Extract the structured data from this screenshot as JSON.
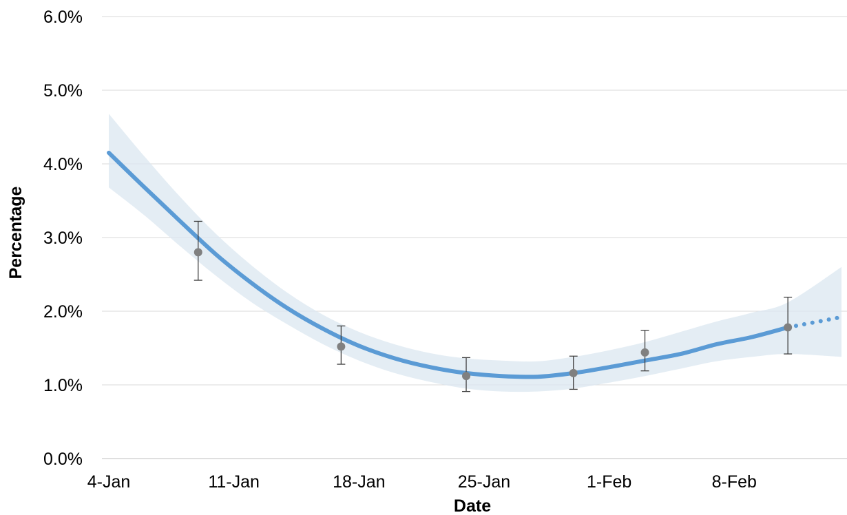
{
  "chart_data": {
    "type": "line",
    "title": "",
    "xlabel": "Date",
    "ylabel": "Percentage",
    "x_ticks": [
      "4-Jan",
      "11-Jan",
      "18-Jan",
      "25-Jan",
      "1-Feb",
      "8-Feb"
    ],
    "x_tick_dates": [
      "2021-01-04",
      "2021-01-11",
      "2021-01-18",
      "2021-01-25",
      "2021-02-01",
      "2021-02-08"
    ],
    "y_ticks": [
      "0.0%",
      "1.0%",
      "2.0%",
      "3.0%",
      "4.0%",
      "5.0%",
      "6.0%"
    ],
    "xlim": [
      "2021-01-04",
      "2021-02-14"
    ],
    "ylim": [
      0,
      6
    ],
    "grid": "horizontal",
    "colors": {
      "line": "#5b9bd5",
      "band": "#dbe7f0",
      "points": "#808080",
      "grid": "#d9d9d9"
    },
    "modelled_line": [
      {
        "x": "2021-01-04",
        "y": 4.15
      },
      {
        "x": "2021-01-06",
        "y": 3.68
      },
      {
        "x": "2021-01-08",
        "y": 3.22
      },
      {
        "x": "2021-01-10",
        "y": 2.77
      },
      {
        "x": "2021-01-12",
        "y": 2.38
      },
      {
        "x": "2021-01-14",
        "y": 2.04
      },
      {
        "x": "2021-01-16",
        "y": 1.76
      },
      {
        "x": "2021-01-18",
        "y": 1.53
      },
      {
        "x": "2021-01-20",
        "y": 1.36
      },
      {
        "x": "2021-01-22",
        "y": 1.24
      },
      {
        "x": "2021-01-24",
        "y": 1.16
      },
      {
        "x": "2021-01-26",
        "y": 1.12
      },
      {
        "x": "2021-01-28",
        "y": 1.11
      },
      {
        "x": "2021-01-30",
        "y": 1.16
      },
      {
        "x": "2021-02-01",
        "y": 1.24
      },
      {
        "x": "2021-02-03",
        "y": 1.33
      },
      {
        "x": "2021-02-05",
        "y": 1.42
      },
      {
        "x": "2021-02-07",
        "y": 1.55
      },
      {
        "x": "2021-02-09",
        "y": 1.65
      },
      {
        "x": "2021-02-11",
        "y": 1.78
      }
    ],
    "projected_line": [
      {
        "x": "2021-02-11",
        "y": 1.78
      },
      {
        "x": "2021-02-14",
        "y": 1.92
      }
    ],
    "credible_interval": [
      {
        "x": "2021-01-04",
        "lower": 3.68,
        "upper": 4.68
      },
      {
        "x": "2021-01-06",
        "lower": 3.3,
        "upper": 4.1
      },
      {
        "x": "2021-01-08",
        "lower": 2.88,
        "upper": 3.55
      },
      {
        "x": "2021-01-10",
        "lower": 2.48,
        "upper": 3.05
      },
      {
        "x": "2021-01-12",
        "lower": 2.12,
        "upper": 2.62
      },
      {
        "x": "2021-01-14",
        "lower": 1.82,
        "upper": 2.25
      },
      {
        "x": "2021-01-16",
        "lower": 1.55,
        "upper": 1.95
      },
      {
        "x": "2021-01-18",
        "lower": 1.33,
        "upper": 1.72
      },
      {
        "x": "2021-01-20",
        "lower": 1.16,
        "upper": 1.55
      },
      {
        "x": "2021-01-22",
        "lower": 1.04,
        "upper": 1.43
      },
      {
        "x": "2021-01-24",
        "lower": 0.95,
        "upper": 1.36
      },
      {
        "x": "2021-01-26",
        "lower": 0.91,
        "upper": 1.33
      },
      {
        "x": "2021-01-28",
        "lower": 0.91,
        "upper": 1.32
      },
      {
        "x": "2021-01-30",
        "lower": 0.95,
        "upper": 1.38
      },
      {
        "x": "2021-02-01",
        "lower": 1.03,
        "upper": 1.47
      },
      {
        "x": "2021-02-03",
        "lower": 1.12,
        "upper": 1.58
      },
      {
        "x": "2021-02-05",
        "lower": 1.22,
        "upper": 1.72
      },
      {
        "x": "2021-02-07",
        "lower": 1.32,
        "upper": 1.86
      },
      {
        "x": "2021-02-09",
        "lower": 1.38,
        "upper": 1.98
      },
      {
        "x": "2021-02-11",
        "lower": 1.42,
        "upper": 2.12
      },
      {
        "x": "2021-02-14",
        "lower": 1.38,
        "upper": 2.6
      }
    ],
    "fortnightly_estimates": [
      {
        "x": "2021-01-09",
        "y": 2.8,
        "lower": 2.42,
        "upper": 3.22
      },
      {
        "x": "2021-01-17",
        "y": 1.52,
        "lower": 1.28,
        "upper": 1.8
      },
      {
        "x": "2021-01-24",
        "y": 1.12,
        "lower": 0.91,
        "upper": 1.37
      },
      {
        "x": "2021-01-30",
        "y": 1.16,
        "lower": 0.94,
        "upper": 1.39
      },
      {
        "x": "2021-02-03",
        "y": 1.44,
        "lower": 1.19,
        "upper": 1.74
      },
      {
        "x": "2021-02-11",
        "y": 1.78,
        "lower": 1.42,
        "upper": 2.19
      }
    ]
  }
}
